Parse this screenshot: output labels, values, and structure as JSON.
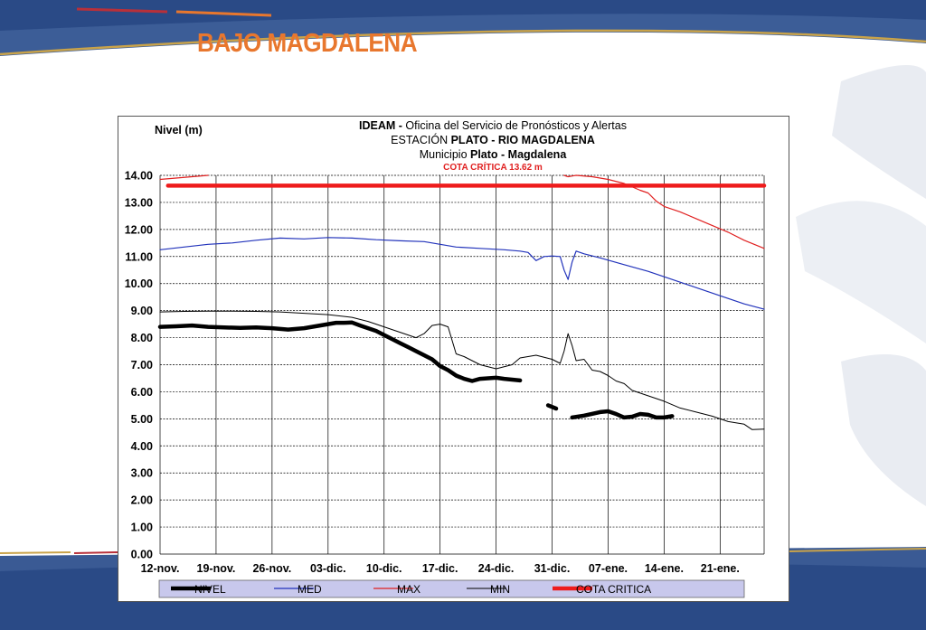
{
  "slide": {
    "title": "BAJO MAGDALENA",
    "colors": {
      "title": "#e8772e",
      "band_blue": "#2c4a86",
      "band_orange": "#e8772e",
      "band_gold": "#c9a34a"
    }
  },
  "chart_data": {
    "type": "line",
    "ylabel": "Nivel (m)",
    "header": {
      "line1_bold": "IDEAM - ",
      "line1_rest": "Oficina  del Servicio de Pronósticos  y Alertas",
      "line2_pre": "ESTACIÓN ",
      "line2_bold": "PLATO - RIO MAGDALENA",
      "line3_pre": "Municipio ",
      "line3_bold": "Plato - Magdalena",
      "line4": "COTA CRÍTICA 13.62 m"
    },
    "x_tick_labels": [
      "12-nov.",
      "19-nov.",
      "26-nov.",
      "03-dic.",
      "10-dic.",
      "17-dic.",
      "24-dic.",
      "31-dic.",
      "07-ene.",
      "14-ene.",
      "21-ene."
    ],
    "y_tick_labels": [
      "0.00",
      "1.00",
      "2.00",
      "3.00",
      "4.00",
      "5.00",
      "6.00",
      "7.00",
      "8.00",
      "9.00",
      "10.00",
      "11.00",
      "12.00",
      "13.00",
      "14.00"
    ],
    "ylim": [
      0,
      14
    ],
    "xlim_days": [
      0,
      75.5
    ],
    "grid": true,
    "legend_position": "bottom",
    "critical_level": 13.62,
    "series": [
      {
        "name": "NIVEL",
        "color": "#000000",
        "width": 4.5,
        "segments": [
          [
            [
              0,
              8.4
            ],
            [
              2,
              8.42
            ],
            [
              4,
              8.45
            ],
            [
              6,
              8.4
            ],
            [
              8,
              8.38
            ],
            [
              10,
              8.36
            ],
            [
              12,
              8.38
            ],
            [
              14,
              8.35
            ],
            [
              16,
              8.3
            ],
            [
              18,
              8.35
            ],
            [
              19,
              8.4
            ],
            [
              20,
              8.45
            ],
            [
              21,
              8.5
            ],
            [
              22,
              8.55
            ],
            [
              23,
              8.55
            ],
            [
              24,
              8.56
            ],
            [
              25,
              8.45
            ],
            [
              26,
              8.35
            ],
            [
              27,
              8.25
            ],
            [
              28,
              8.1
            ],
            [
              29,
              7.95
            ],
            [
              30,
              7.8
            ],
            [
              31,
              7.65
            ],
            [
              32,
              7.5
            ],
            [
              33,
              7.35
            ],
            [
              34,
              7.2
            ],
            [
              35,
              6.95
            ],
            [
              36,
              6.8
            ],
            [
              37,
              6.6
            ],
            [
              38,
              6.48
            ],
            [
              39,
              6.4
            ],
            [
              40,
              6.48
            ],
            [
              41,
              6.5
            ],
            [
              42,
              6.52
            ],
            [
              43,
              6.48
            ],
            [
              44,
              6.45
            ],
            [
              45,
              6.42
            ]
          ],
          [
            [
              48.5,
              5.5
            ],
            [
              49.5,
              5.38
            ]
          ],
          [
            [
              51.5,
              5.05
            ],
            [
              53,
              5.12
            ],
            [
              55,
              5.25
            ],
            [
              56,
              5.28
            ],
            [
              57,
              5.18
            ],
            [
              58,
              5.05
            ],
            [
              59,
              5.08
            ],
            [
              60,
              5.18
            ],
            [
              61,
              5.15
            ],
            [
              62,
              5.05
            ],
            [
              63,
              5.05
            ],
            [
              64,
              5.1
            ]
          ]
        ]
      },
      {
        "name": "MED",
        "color": "#2233bb",
        "width": 1.2,
        "segments": [
          [
            [
              0,
              11.25
            ],
            [
              3,
              11.35
            ],
            [
              6,
              11.45
            ],
            [
              9,
              11.5
            ],
            [
              12,
              11.6
            ],
            [
              15,
              11.68
            ],
            [
              18,
              11.65
            ],
            [
              21,
              11.7
            ],
            [
              24,
              11.68
            ],
            [
              27,
              11.62
            ],
            [
              30,
              11.58
            ],
            [
              33,
              11.55
            ],
            [
              35,
              11.45
            ],
            [
              37,
              11.35
            ],
            [
              40,
              11.3
            ],
            [
              43,
              11.25
            ],
            [
              45,
              11.2
            ],
            [
              46,
              11.15
            ],
            [
              47,
              10.85
            ],
            [
              48,
              11.0
            ],
            [
              49,
              11.02
            ],
            [
              50,
              11.0
            ],
            [
              50.5,
              10.5
            ],
            [
              51,
              10.15
            ],
            [
              51.5,
              10.8
            ],
            [
              52,
              11.2
            ],
            [
              53,
              11.1
            ],
            [
              55,
              10.95
            ],
            [
              58,
              10.7
            ],
            [
              61,
              10.45
            ],
            [
              64,
              10.15
            ],
            [
              67,
              9.85
            ],
            [
              70,
              9.55
            ],
            [
              73,
              9.25
            ],
            [
              75.5,
              9.05
            ]
          ]
        ]
      },
      {
        "name": "MAX",
        "color": "#e02020",
        "width": 1.2,
        "segments": [
          [
            [
              0,
              13.85
            ],
            [
              2,
              13.9
            ],
            [
              4,
              13.95
            ],
            [
              6,
              14.0
            ]
          ],
          [
            [
              50.5,
              14.0
            ],
            [
              51,
              13.95
            ],
            [
              52,
              14.0
            ],
            [
              54,
              13.95
            ],
            [
              56,
              13.85
            ],
            [
              58,
              13.7
            ],
            [
              60,
              13.45
            ],
            [
              61,
              13.35
            ],
            [
              62,
              13.05
            ],
            [
              63,
              12.85
            ],
            [
              65,
              12.65
            ],
            [
              67,
              12.4
            ],
            [
              69,
              12.15
            ],
            [
              71,
              11.9
            ],
            [
              73,
              11.6
            ],
            [
              75.5,
              11.3
            ]
          ]
        ]
      },
      {
        "name": "MIN",
        "color": "#000000",
        "width": 1.0,
        "segments": [
          [
            [
              0,
              8.95
            ],
            [
              3,
              8.97
            ],
            [
              6,
              8.98
            ],
            [
              9,
              8.98
            ],
            [
              12,
              8.97
            ],
            [
              15,
              8.95
            ],
            [
              18,
              8.9
            ],
            [
              21,
              8.85
            ],
            [
              24,
              8.75
            ],
            [
              26,
              8.6
            ],
            [
              28,
              8.4
            ],
            [
              30,
              8.2
            ],
            [
              32,
              8.0
            ],
            [
              33,
              8.15
            ],
            [
              34,
              8.45
            ],
            [
              35,
              8.5
            ],
            [
              36,
              8.4
            ],
            [
              37,
              7.4
            ],
            [
              38,
              7.3
            ],
            [
              40,
              7.0
            ],
            [
              42,
              6.85
            ],
            [
              44,
              7.0
            ],
            [
              45,
              7.25
            ],
            [
              47,
              7.35
            ],
            [
              49,
              7.2
            ],
            [
              50,
              7.05
            ],
            [
              50.5,
              7.5
            ],
            [
              51,
              8.15
            ],
            [
              51.5,
              7.7
            ],
            [
              52,
              7.15
            ],
            [
              53,
              7.2
            ],
            [
              54,
              6.8
            ],
            [
              55,
              6.75
            ],
            [
              56,
              6.6
            ],
            [
              57,
              6.4
            ],
            [
              58,
              6.3
            ],
            [
              59,
              6.05
            ],
            [
              61,
              5.85
            ],
            [
              63,
              5.65
            ],
            [
              65,
              5.4
            ],
            [
              67,
              5.25
            ],
            [
              69,
              5.1
            ],
            [
              71,
              4.9
            ],
            [
              73,
              4.8
            ],
            [
              74,
              4.6
            ],
            [
              75.5,
              4.62
            ]
          ]
        ]
      },
      {
        "name": "COTA CRITICA",
        "color": "#ee1c1c",
        "width": 4.5,
        "segments": [
          [
            [
              1,
              13.62
            ],
            [
              75.5,
              13.62
            ]
          ]
        ]
      }
    ]
  }
}
